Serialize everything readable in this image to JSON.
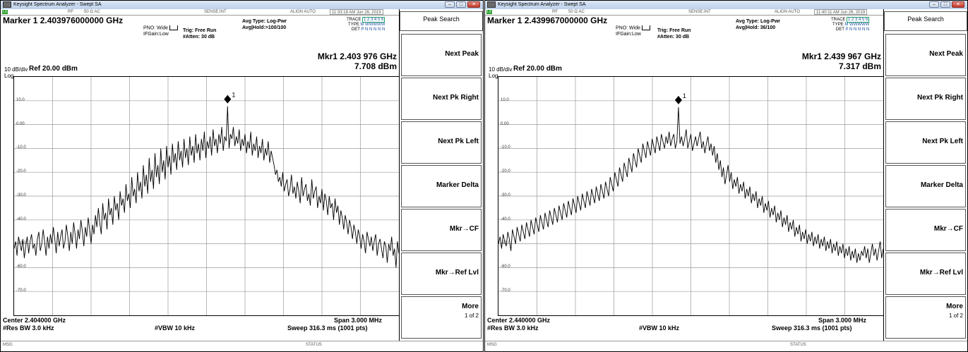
{
  "screens": [
    {
      "title": "Keysight Spectrum Analyzer - Swept SA",
      "status_rf": "RF",
      "status_impedance": "50 Ω  AC",
      "status_sense": "SENSE:INT",
      "status_align": "ALIGN AUTO",
      "status_time": "11:33:18 AM Jun 26, 2019",
      "marker_line": "Marker 1 2.403976000000 GHz",
      "pno": "PNO: Wide",
      "ifgain": "IFGain:Low",
      "trig": "Trig: Free Run",
      "atten": "#Atten: 30 dB",
      "avg_type": "Avg Type: Log-Pwr",
      "avg_hold": "Avg|Hold:>100/100",
      "trace_label": "TRACE",
      "trace_values": "1 2 3 4 5 6",
      "type_label": "TYPE",
      "type_values": "M WWWWW",
      "det_label": "DET",
      "det_values": "P N N N N N",
      "mkr_freq": "Mkr1 2.403 976 GHz",
      "mkr_level": "7.708 dBm",
      "scale_div": "10 dB/div",
      "ref_level": "Ref 20.00 dBm",
      "scale_type": "Log",
      "yticks": [
        "10.0",
        "0.00",
        "-10.0",
        "-20.0",
        "-30.0",
        "-40.0",
        "-50.0",
        "-60.0",
        "-70.0"
      ],
      "marker_num": "1",
      "center": "Center 2.404000 GHz",
      "span": "Span 3.000 MHz",
      "res_bw": "#Res BW 3.0 kHz",
      "vbw": "#VBW 10 kHz",
      "sweep": "Sweep  316.3 ms (1001 pts)",
      "msg": "MSG",
      "status": "STATUS",
      "softkeys": {
        "title": "Peak Search",
        "items": [
          "Next Peak",
          "Next Pk Right",
          "Next Pk Left",
          "Marker Delta",
          "Mkr→CF",
          "Mkr→Ref Lvl"
        ],
        "more": "More",
        "more_page": "1 of 2"
      },
      "chart_data": {
        "type": "line",
        "xlabel": "",
        "ylabel": "",
        "ylim": [
          -80,
          20
        ],
        "x_center_ghz": 2.404,
        "x_span_mhz": 3.0,
        "marker_peak_dbm": 7.708,
        "series": [
          {
            "values": [
              -52,
              -49,
              -55,
              -47,
              -50,
              -53,
              -48,
              -56,
              -51,
              -47,
              -54,
              -49,
              -46,
              -52,
              -50,
              -55,
              -48,
              -45,
              -53,
              -50,
              -44,
              -49,
              -55,
              -47,
              -52,
              -46,
              -50,
              -43,
              -48,
              -54,
              -45,
              -51,
              -47,
              -44,
              -52,
              -49,
              -42,
              -47,
              -53,
              -45,
              -50,
              -41,
              -46,
              -52,
              -44,
              -48,
              -40,
              -45,
              -51,
              -43,
              -47,
              -39,
              -44,
              -50,
              -42,
              -46,
              -38,
              -43,
              -35,
              -41,
              -46,
              -33,
              -40,
              -37,
              -44,
              -31,
              -38,
              -35,
              -42,
              -30,
              -36,
              -33,
              -40,
              -28,
              -34,
              -31,
              -37,
              -25,
              -32,
              -29,
              -35,
              -22,
              -30,
              -27,
              -33,
              -20,
              -28,
              -24,
              -31,
              -17,
              -26,
              -21,
              -29,
              -14,
              -24,
              -19,
              -27,
              -12,
              -22,
              -17,
              -25,
              -10,
              -20,
              -15,
              -23,
              -9,
              -18,
              -13,
              -21,
              -8,
              -16,
              -12,
              -19,
              -7,
              -15,
              -11,
              -18,
              -6,
              -14,
              -10,
              -17,
              -5,
              -13,
              -9,
              -16,
              -4,
              -12,
              -8,
              -15,
              -6,
              -11,
              -3,
              -14,
              -7,
              -10,
              -5,
              -13,
              -2,
              -9,
              -6,
              -12,
              -4,
              -8,
              -1,
              -11,
              -5,
              -7,
              7.7,
              -10,
              -4,
              -6,
              -1,
              -9,
              -5,
              -8,
              -2,
              -11,
              -6,
              -9,
              -4,
              -12,
              -7,
              -10,
              -3,
              -13,
              -8,
              -11,
              -5,
              -14,
              -9,
              -12,
              -6,
              -15,
              -10,
              -13,
              -7,
              -16,
              -11,
              -14,
              -17,
              -21,
              -19,
              -24,
              -22,
              -26,
              -20,
              -28,
              -25,
              -23,
              -30,
              -27,
              -21,
              -29,
              -26,
              -31,
              -24,
              -28,
              -33,
              -22,
              -30,
              -27,
              -25,
              -32,
              -29,
              -34,
              -23,
              -31,
              -28,
              -26,
              -35,
              -30,
              -33,
              -27,
              -36,
              -29,
              -32,
              -38,
              -30,
              -35,
              -33,
              -40,
              -31,
              -37,
              -34,
              -42,
              -36,
              -39,
              -44,
              -38,
              -41,
              -46,
              -40,
              -43,
              -48,
              -42,
              -45,
              -50,
              -44,
              -47,
              -52,
              -46,
              -49,
              -54,
              -45,
              -48,
              -51,
              -47,
              -53,
              -49,
              -46,
              -55,
              -50,
              -48,
              -52,
              -56,
              -49,
              -51,
              -58,
              -50,
              -53,
              -47,
              -55,
              -52,
              -60,
              -49,
              -54
            ]
          }
        ]
      }
    },
    {
      "title": "Keysight Spectrum Analyzer - Swept SA",
      "status_rf": "RF",
      "status_impedance": "50 Ω  AC",
      "status_sense": "SENSE:INT",
      "status_align": "ALIGN AUTO",
      "status_time": "11:40:11 AM Jun 26, 2019",
      "marker_line": "Marker 1 2.439967000000 GHz",
      "pno": "PNO: Wide",
      "ifgain": "IFGain:Low",
      "trig": "Trig: Free Run",
      "atten": "#Atten: 30 dB",
      "avg_type": "Avg Type: Log-Pwr",
      "avg_hold": "Avg|Hold: 36/100",
      "trace_label": "TRACE",
      "trace_values": "1 2 3 4 5 6",
      "type_label": "TYPE",
      "type_values": "M WWWWW",
      "det_label": "DET",
      "det_values": "P N N N N N",
      "mkr_freq": "Mkr1 2.439 967 GHz",
      "mkr_level": "7.317 dBm",
      "scale_div": "10 dB/div",
      "ref_level": "Ref 20.00 dBm",
      "scale_type": "Log",
      "yticks": [
        "10.0",
        "0.00",
        "-10.0",
        "-20.0",
        "-30.0",
        "-40.0",
        "-50.0",
        "-60.0",
        "-70.0"
      ],
      "marker_num": "1",
      "center": "Center 2.440000 GHz",
      "span": "Span 3.000 MHz",
      "res_bw": "#Res BW 3.0 kHz",
      "vbw": "#VBW 10 kHz",
      "sweep": "Sweep  316.3 ms (1001 pts)",
      "msg": "MSG",
      "status": "STATUS",
      "softkeys": {
        "title": "Peak Search",
        "items": [
          "Next Peak",
          "Next Pk Right",
          "Next Pk Left",
          "Marker Delta",
          "Mkr→CF",
          "Mkr→Ref Lvl"
        ],
        "more": "More",
        "more_page": "1 of 2"
      },
      "chart_data": {
        "type": "line",
        "xlabel": "",
        "ylabel": "",
        "ylim": [
          -80,
          20
        ],
        "x_center_ghz": 2.44,
        "x_span_mhz": 3.0,
        "marker_peak_dbm": 7.317,
        "series": [
          {
            "values": [
              -50,
              -47,
              -52,
              -46,
              -49,
              -51,
              -45,
              -48,
              -53,
              -44,
              -47,
              -50,
              -43,
              -46,
              -49,
              -42,
              -45,
              -48,
              -41,
              -44,
              -47,
              -40,
              -43,
              -46,
              -39,
              -42,
              -45,
              -38,
              -41,
              -44,
              -37,
              -40,
              -43,
              -36,
              -39,
              -42,
              -35,
              -38,
              -41,
              -34,
              -37,
              -40,
              -33,
              -36,
              -39,
              -32,
              -35,
              -38,
              -31,
              -34,
              -37,
              -30,
              -33,
              -36,
              -29,
              -32,
              -35,
              -28,
              -31,
              -34,
              -27,
              -30,
              -33,
              -26,
              -29,
              -32,
              -25,
              -28,
              -31,
              -24,
              -27,
              -30,
              -22,
              -25,
              -28,
              -20,
              -23,
              -26,
              -18,
              -21,
              -24,
              -16,
              -19,
              -22,
              -14,
              -17,
              -20,
              -12,
              -15,
              -18,
              -10,
              -13,
              -16,
              -8,
              -11,
              -14,
              -7,
              -10,
              -13,
              -6,
              -9,
              -12,
              -5,
              -8,
              -11,
              -4,
              -7,
              -10,
              -5,
              -8,
              -3,
              -9,
              -6,
              -4,
              -10,
              -7,
              7.3,
              -8,
              -5,
              -9,
              -6,
              -2,
              -10,
              -7,
              -4,
              -11,
              -8,
              -5,
              -9,
              -6,
              -3,
              -10,
              -7,
              -12,
              -8,
              -5,
              -11,
              -8,
              -13,
              -9,
              -16,
              -12,
              -19,
              -15,
              -22,
              -18,
              -25,
              -21,
              -17,
              -24,
              -20,
              -27,
              -23,
              -26,
              -22,
              -29,
              -25,
              -28,
              -24,
              -31,
              -27,
              -30,
              -26,
              -33,
              -29,
              -32,
              -28,
              -35,
              -31,
              -34,
              -30,
              -37,
              -33,
              -36,
              -32,
              -39,
              -35,
              -38,
              -34,
              -41,
              -37,
              -40,
              -36,
              -43,
              -39,
              -42,
              -38,
              -45,
              -41,
              -44,
              -40,
              -47,
              -43,
              -46,
              -42,
              -49,
              -45,
              -48,
              -44,
              -50,
              -46,
              -49,
              -45,
              -51,
              -47,
              -50,
              -46,
              -52,
              -48,
              -51,
              -47,
              -53,
              -49,
              -52,
              -48,
              -54,
              -50,
              -53,
              -49,
              -55,
              -51,
              -54,
              -50,
              -56,
              -52,
              -55,
              -51,
              -57,
              -53,
              -56,
              -52,
              -58,
              -54,
              -57,
              -53,
              -55,
              -51,
              -56,
              -52,
              -58,
              -54,
              -50,
              -55,
              -52,
              -57,
              -53,
              -49,
              -56,
              -52
            ]
          }
        ]
      }
    }
  ]
}
